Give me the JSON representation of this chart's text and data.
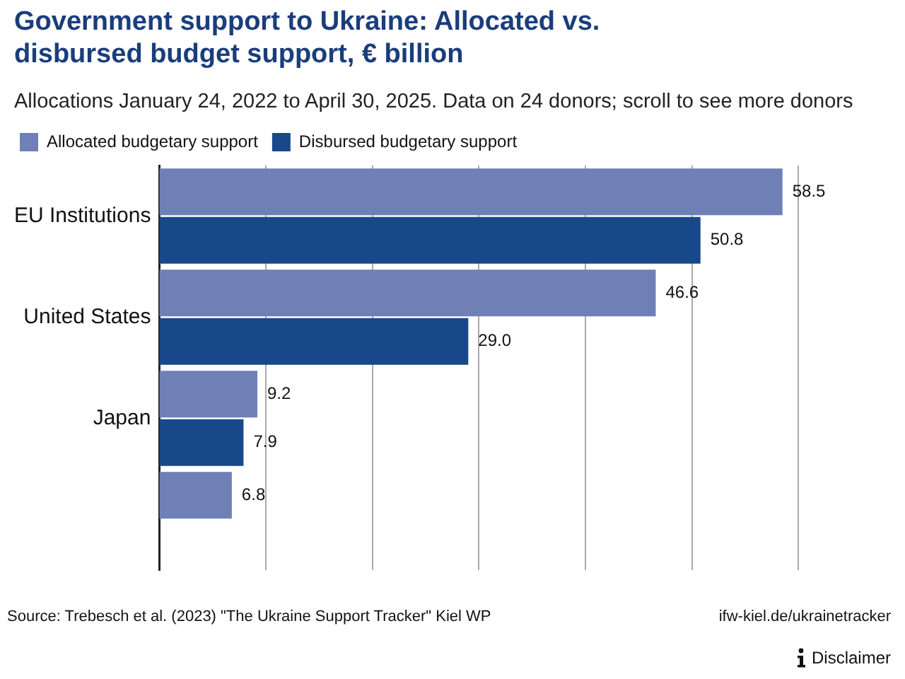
{
  "chart_data": {
    "type": "bar",
    "orientation": "horizontal",
    "title": "Government support to Ukraine: Allocated vs. disbursed budget support, € billion",
    "subtitle": "Allocations January 24, 2022 to April 30, 2025. Data on 24 donors; scroll to see more donors",
    "categories": [
      "EU Institutions",
      "United States",
      "Japan",
      null
    ],
    "series": [
      {
        "name": "Allocated budgetary support",
        "color": "#6f80b6",
        "values": [
          58.5,
          46.6,
          9.2,
          6.8
        ],
        "value_labels": [
          "58.5",
          "46.6",
          "9.2",
          "6.8"
        ]
      },
      {
        "name": "Disbursed budgetary support",
        "color": "#19488a",
        "values": [
          50.8,
          29.0,
          7.9,
          null
        ],
        "value_labels": [
          "50.8",
          "29.0",
          "7.9",
          null
        ]
      }
    ],
    "xticks": [
      {
        "value": 0,
        "label": null
      },
      {
        "value": 10,
        "label": null
      },
      {
        "value": 20,
        "label": null
      },
      {
        "value": 30,
        "label": null
      },
      {
        "value": 40,
        "label": null
      },
      {
        "value": 50,
        "label": null
      },
      {
        "value": 60,
        "label": null
      }
    ],
    "tick_labels": "y",
    "grid": "x",
    "legend": "top left",
    "annotations": [
      "Source: Trebesch et al. (2023) \"The Ukraine Support Tracker\" Kiel WP",
      "ifw-kiel.de/ukrainetracker",
      "Disclaimer"
    ]
  }
}
